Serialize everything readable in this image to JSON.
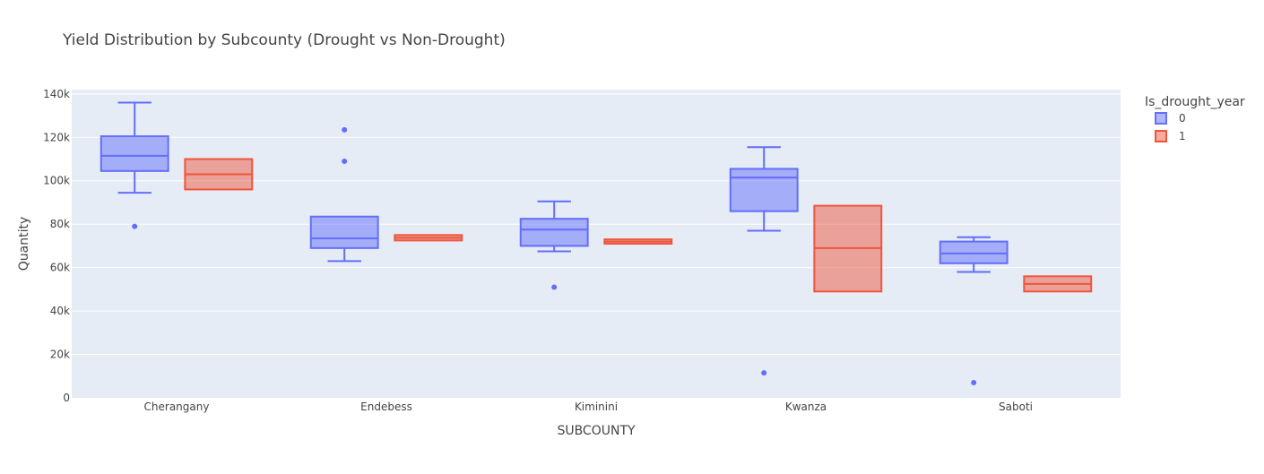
{
  "chart_data": {
    "type": "box",
    "title": "Yield Distribution by Subcounty (Drought vs Non-Drought)",
    "xlabel": "SUBCOUNTY",
    "ylabel": "Quantity",
    "ylim": [
      0,
      142000
    ],
    "yticks": [
      0,
      20000,
      40000,
      60000,
      80000,
      100000,
      120000,
      140000
    ],
    "ytick_labels": [
      "0",
      "20k",
      "40k",
      "60k",
      "80k",
      "100k",
      "120k",
      "140k"
    ],
    "categories": [
      "Cherangany",
      "Endebess",
      "Kiminini",
      "Kwanza",
      "Saboti"
    ],
    "grid": true,
    "legend": {
      "title": "Is_drought_year",
      "position": "top-right"
    },
    "series": [
      {
        "name": "0",
        "color": "#636efa",
        "fill": "rgba(99,110,250,0.5)",
        "boxes": [
          {
            "category": "Cherangany",
            "lower_whisker": 94500,
            "q1": 104500,
            "median": 111500,
            "q3": 120500,
            "upper_whisker": 136000,
            "outliers": [
              79000
            ]
          },
          {
            "category": "Endebess",
            "lower_whisker": 63000,
            "q1": 69000,
            "median": 73500,
            "q3": 83500,
            "upper_whisker": 83500,
            "outliers": [
              109000,
              123500
            ]
          },
          {
            "category": "Kiminini",
            "lower_whisker": 67500,
            "q1": 70000,
            "median": 77500,
            "q3": 82500,
            "upper_whisker": 90500,
            "outliers": [
              51000
            ]
          },
          {
            "category": "Kwanza",
            "lower_whisker": 77000,
            "q1": 86000,
            "median": 101500,
            "q3": 105500,
            "upper_whisker": 115500,
            "outliers": [
              11500
            ]
          },
          {
            "category": "Saboti",
            "lower_whisker": 58000,
            "q1": 62000,
            "median": 66500,
            "q3": 72000,
            "upper_whisker": 74000,
            "outliers": [
              7000
            ]
          }
        ]
      },
      {
        "name": "1",
        "color": "#ef553b",
        "fill": "rgba(239,85,59,0.5)",
        "boxes": [
          {
            "category": "Cherangany",
            "lower_whisker": 96000,
            "q1": 96000,
            "median": 103000,
            "q3": 110000,
            "upper_whisker": 110000,
            "outliers": []
          },
          {
            "category": "Endebess",
            "lower_whisker": 72500,
            "q1": 72500,
            "median": 73750,
            "q3": 75000,
            "upper_whisker": 75000,
            "outliers": []
          },
          {
            "category": "Kiminini",
            "lower_whisker": 71000,
            "q1": 71000,
            "median": 72000,
            "q3": 73000,
            "upper_whisker": 73000,
            "outliers": []
          },
          {
            "category": "Kwanza",
            "lower_whisker": 49000,
            "q1": 49000,
            "median": 69000,
            "q3": 88500,
            "upper_whisker": 88500,
            "outliers": []
          },
          {
            "category": "Saboti",
            "lower_whisker": 49000,
            "q1": 49000,
            "median": 52500,
            "q3": 56000,
            "upper_whisker": 56000,
            "outliers": []
          }
        ]
      }
    ]
  }
}
